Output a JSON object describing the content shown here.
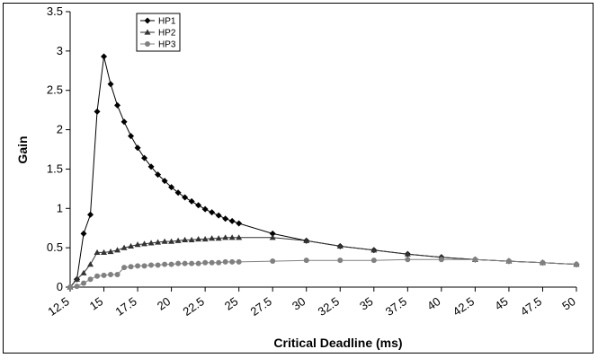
{
  "chart_data": {
    "type": "line",
    "title": "",
    "xlabel": "Critical Deadline (ms)",
    "ylabel": "Gain",
    "xlim": [
      12.5,
      50
    ],
    "ylim": [
      0,
      3.5
    ],
    "x_ticks": [
      "12.5",
      "15",
      "17.5",
      "20",
      "22.5",
      "25",
      "27.5",
      "30",
      "32.5",
      "35",
      "37.5",
      "40",
      "42.5",
      "45",
      "47.5",
      "50"
    ],
    "y_ticks": [
      "0",
      "0.5",
      "1",
      "1.5",
      "2",
      "2.5",
      "3",
      "3.5"
    ],
    "grid": false,
    "legend_position": "top-left",
    "series": [
      {
        "name": "HP1",
        "color": "#000000",
        "marker": "diamond",
        "x": [
          12.5,
          13,
          13.5,
          14,
          14.5,
          15,
          15.5,
          16,
          16.5,
          17,
          17.5,
          18,
          18.5,
          19,
          19.5,
          20,
          20.5,
          21,
          21.5,
          22,
          22.5,
          23,
          23.5,
          24,
          24.5,
          25,
          27.5,
          30,
          32.5,
          35,
          37.5,
          40,
          42.5,
          45,
          47.5,
          50
        ],
        "y": [
          0,
          0.1,
          0.68,
          0.92,
          2.23,
          2.93,
          2.58,
          2.31,
          2.1,
          1.92,
          1.77,
          1.64,
          1.53,
          1.43,
          1.35,
          1.27,
          1.2,
          1.14,
          1.09,
          1.04,
          0.99,
          0.95,
          0.91,
          0.87,
          0.84,
          0.81,
          0.68,
          0.59,
          0.52,
          0.47,
          0.42,
          0.38,
          0.35,
          0.33,
          0.31,
          0.29
        ]
      },
      {
        "name": "HP2",
        "color": "#333333",
        "marker": "triangle",
        "x": [
          12.5,
          13,
          13.5,
          14,
          14.5,
          15,
          15.5,
          16,
          16.5,
          17,
          17.5,
          18,
          18.5,
          19,
          19.5,
          20,
          20.5,
          21,
          21.5,
          22,
          22.5,
          23,
          23.5,
          24,
          24.5,
          25,
          27.5,
          30,
          32.5,
          35,
          37.5,
          40,
          42.5,
          45,
          47.5,
          50
        ],
        "y": [
          0,
          0.1,
          0.18,
          0.29,
          0.44,
          0.44,
          0.45,
          0.47,
          0.5,
          0.52,
          0.54,
          0.55,
          0.56,
          0.57,
          0.58,
          0.58,
          0.59,
          0.6,
          0.6,
          0.61,
          0.61,
          0.62,
          0.62,
          0.63,
          0.63,
          0.63,
          0.63,
          0.59,
          0.52,
          0.47,
          0.42,
          0.38,
          0.35,
          0.33,
          0.31,
          0.29
        ]
      },
      {
        "name": "HP3",
        "color": "#808080",
        "marker": "circle",
        "x": [
          12.5,
          13,
          13.5,
          14,
          14.5,
          15,
          15.5,
          16,
          16.5,
          17,
          17.5,
          18,
          18.5,
          19,
          19.5,
          20,
          20.5,
          21,
          21.5,
          22,
          22.5,
          23,
          23.5,
          24,
          24.5,
          25,
          27.5,
          30,
          32.5,
          35,
          37.5,
          40,
          42.5,
          45,
          47.5,
          50
        ],
        "y": [
          0,
          0.01,
          0.05,
          0.1,
          0.14,
          0.15,
          0.16,
          0.16,
          0.25,
          0.26,
          0.27,
          0.27,
          0.28,
          0.28,
          0.29,
          0.29,
          0.3,
          0.3,
          0.3,
          0.3,
          0.31,
          0.31,
          0.31,
          0.32,
          0.32,
          0.32,
          0.33,
          0.34,
          0.34,
          0.34,
          0.35,
          0.35,
          0.35,
          0.33,
          0.31,
          0.29
        ]
      }
    ]
  }
}
